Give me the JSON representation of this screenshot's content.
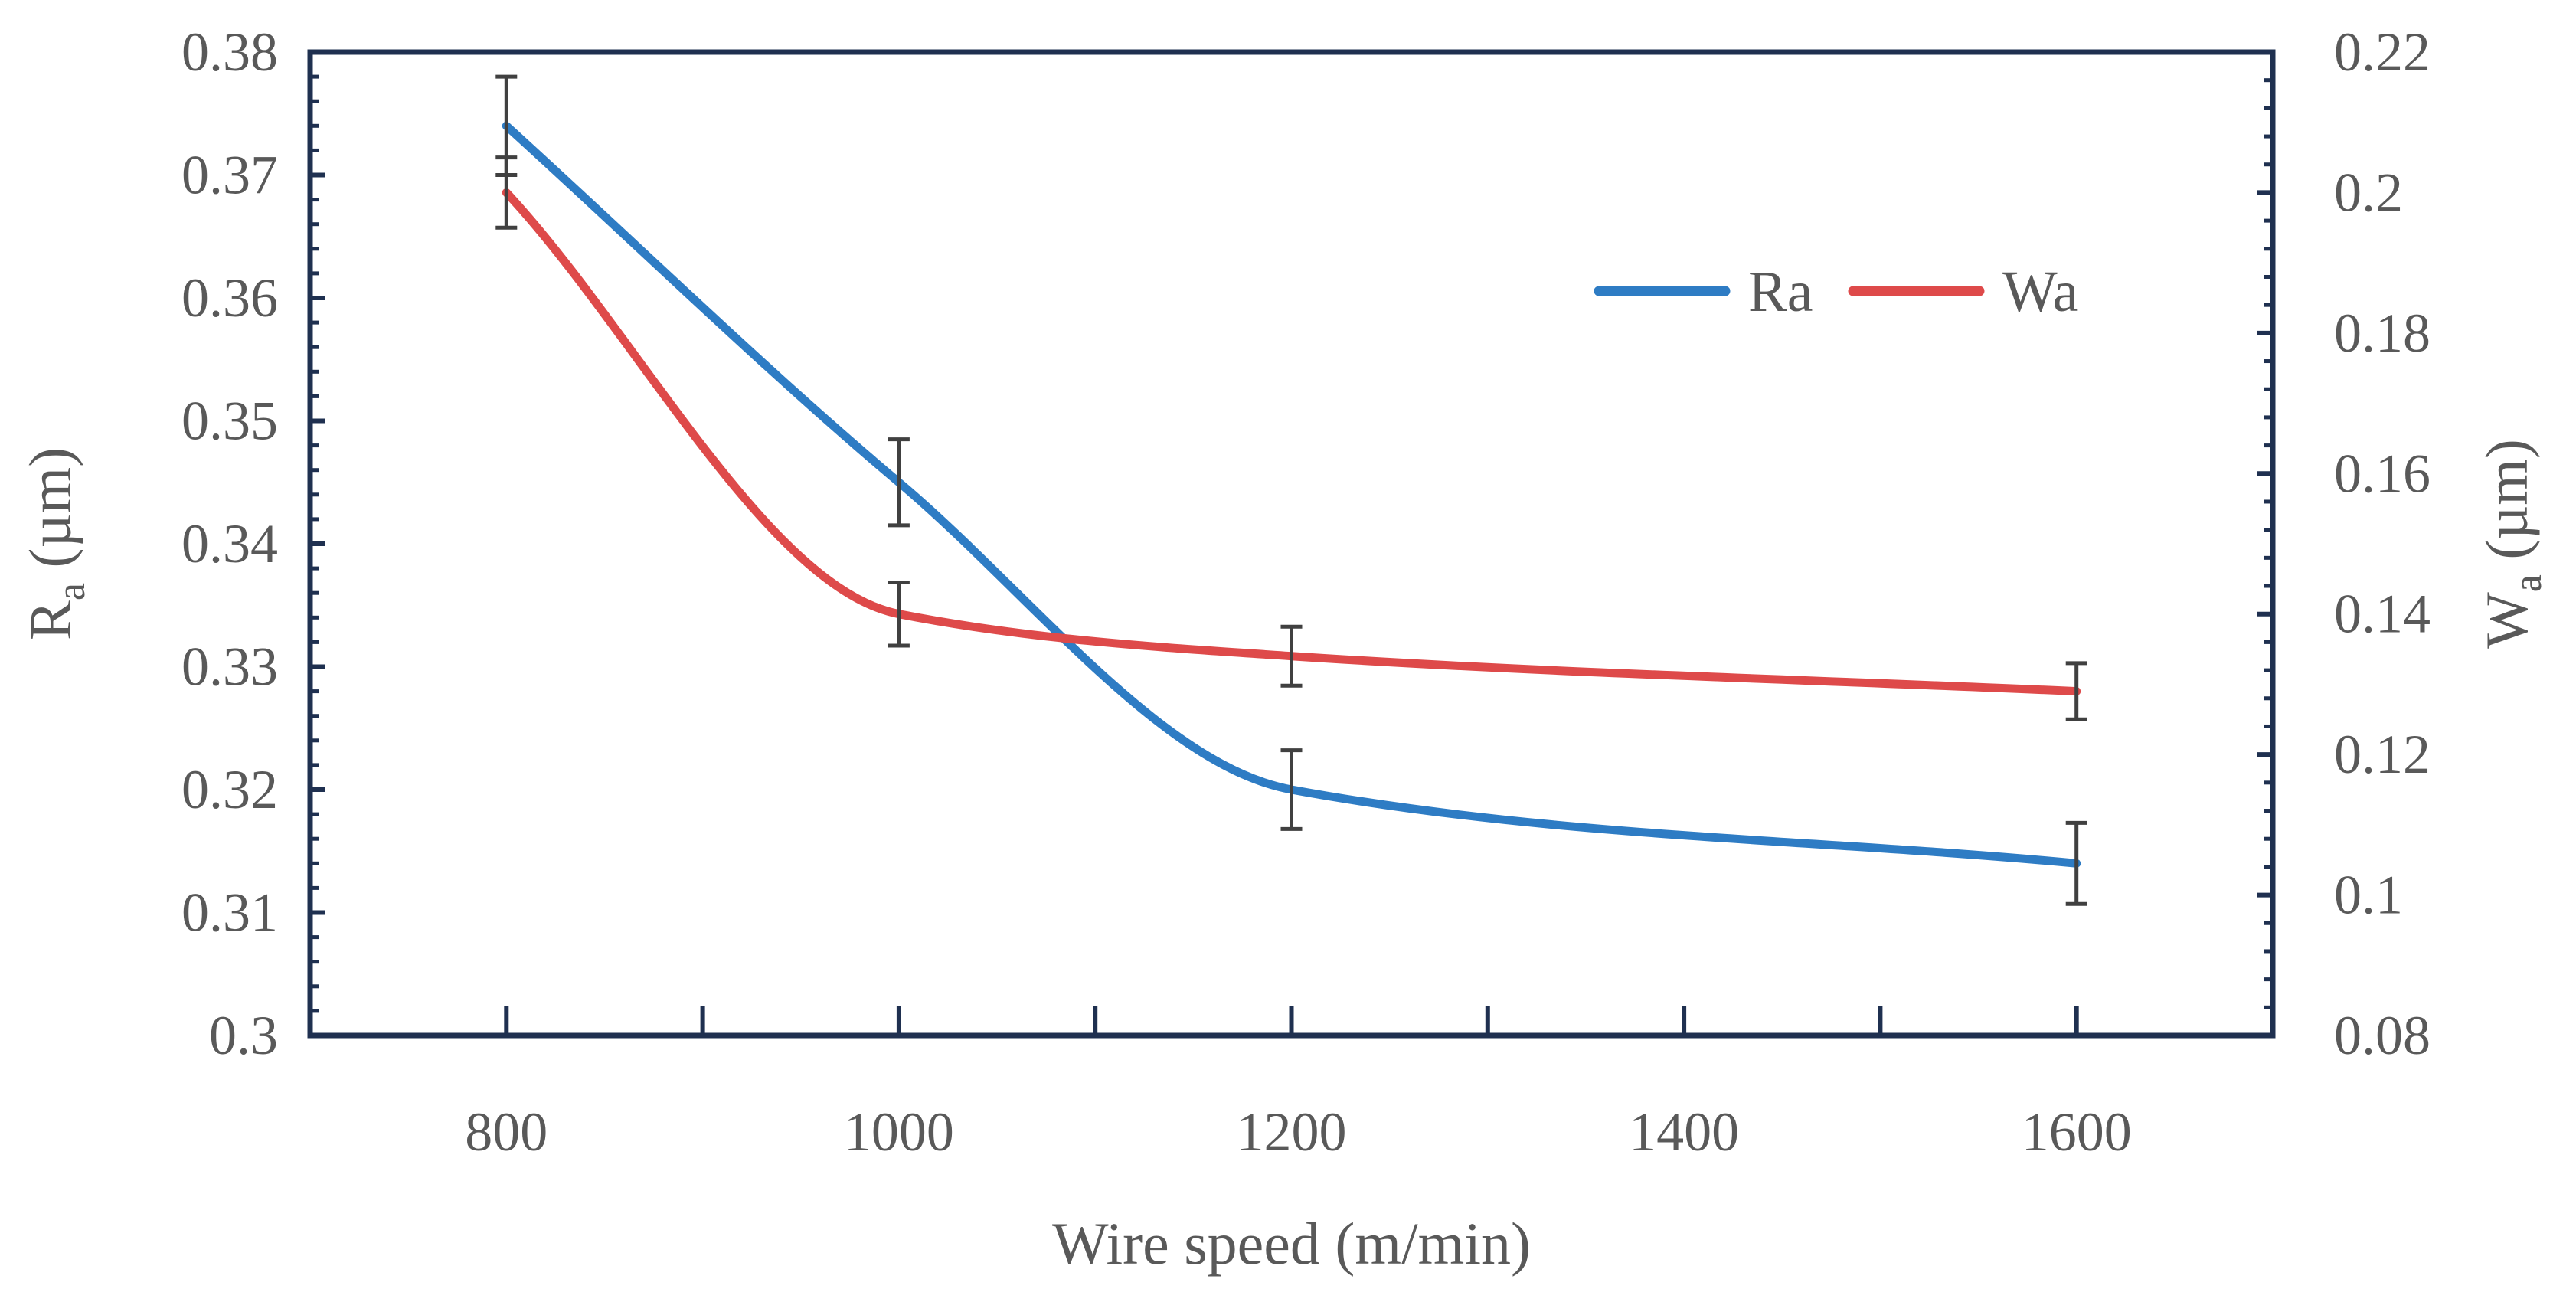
{
  "chart_data": {
    "type": "line",
    "title": "",
    "xlabel": "Wire speed (m/min)",
    "ylabel_main": "R",
    "ylabel_sub": "a",
    "ylabel_unit": " (µm)",
    "y2label_main": "W",
    "y2label_sub": "a",
    "y2label_unit": " (µm)",
    "xlim": [
      700,
      1700
    ],
    "x_ticks": [
      800,
      1000,
      1200,
      1400,
      1600
    ],
    "x_tick_labels": [
      "800",
      "1000",
      "1200",
      "1400",
      "1600"
    ],
    "ylim": [
      0.3,
      0.38
    ],
    "y_ticks": [
      0.3,
      0.31,
      0.32,
      0.33,
      0.34,
      0.35,
      0.36,
      0.37,
      0.38
    ],
    "y_tick_labels": [
      "0.3",
      "0.31",
      "0.32",
      "0.33",
      "0.34",
      "0.35",
      "0.36",
      "0.37",
      "0.38"
    ],
    "y2lim": [
      0.08,
      0.22
    ],
    "y2_ticks": [
      0.08,
      0.1,
      0.12,
      0.14,
      0.16,
      0.18,
      0.2,
      0.22
    ],
    "y2_tick_labels": [
      "0.08",
      "0.1",
      "0.12",
      "0.14",
      "0.16",
      "0.18",
      "0.2",
      "0.22"
    ],
    "legend_position": "top-right",
    "grid": false,
    "series": [
      {
        "name": "Ra",
        "axis": "left",
        "color": "#2E7CC4",
        "x": [
          800,
          1000,
          1200,
          1600
        ],
        "values": [
          0.374,
          0.345,
          0.32,
          0.314
        ],
        "error": [
          0.004,
          0.0035,
          0.0032,
          0.0033
        ]
      },
      {
        "name": "Wa",
        "axis": "right",
        "color": "#DE4A4A",
        "x": [
          800,
          1000,
          1200,
          1600
        ],
        "values": [
          0.2,
          0.14,
          0.134,
          0.129
        ],
        "error": [
          0.005,
          0.0045,
          0.0042,
          0.004
        ]
      }
    ]
  }
}
